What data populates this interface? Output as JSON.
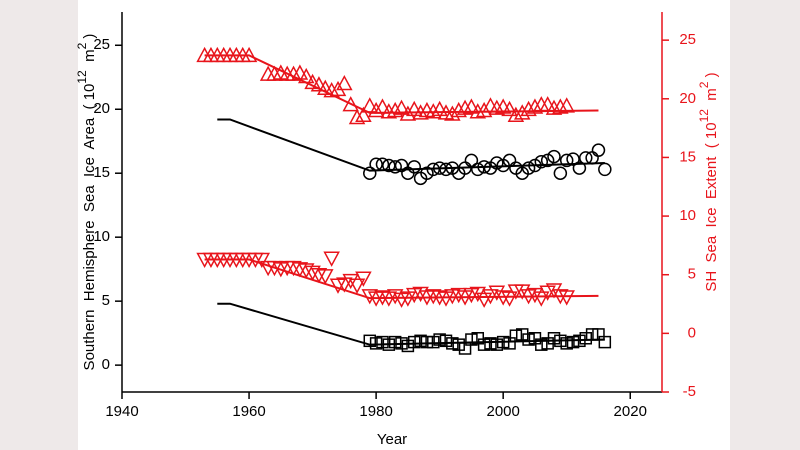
{
  "chart_data": {
    "type": "scatter",
    "xlabel": "Year",
    "ylabel": [
      "Southern  Hemisphere  Sea  Ice  Area  ( 10",
      "12",
      "  m",
      "2",
      " )"
    ],
    "y2label": [
      "SH  Sea  Ice  Extent  ( 10",
      "12",
      "  m",
      "2",
      " )"
    ],
    "xlim": [
      1940,
      2025
    ],
    "xticks": [
      1940,
      1960,
      1980,
      2000,
      2020
    ],
    "ylim": [
      -2.1,
      27.6
    ],
    "yticks": [
      0,
      5,
      10,
      15,
      20,
      25
    ],
    "y2lim": [
      -5,
      27.4
    ],
    "y2ticks": [
      -5,
      0,
      5,
      10,
      15,
      20,
      25
    ],
    "axis_color": "#000000",
    "y2_color": "#e8141b",
    "series": [
      {
        "type": "line",
        "color": "#000000",
        "x": [
          1955,
          1957,
          1979,
          2016
        ],
        "values": [
          19.2,
          19.2,
          15.2,
          15.8
        ]
      },
      {
        "type": "line",
        "color": "#000000",
        "x": [
          1955,
          1957,
          1979,
          2016
        ],
        "values": [
          4.8,
          4.8,
          1.6,
          2.0
        ]
      },
      {
        "type": "line",
        "color": "#e8141b",
        "axis": "y2",
        "x": [
          1953,
          1960,
          1979,
          2015
        ],
        "values": [
          23.7,
          23.7,
          18.8,
          19.0
        ]
      },
      {
        "type": "line",
        "color": "#e8141b",
        "axis": "y2",
        "x": [
          1953,
          1960,
          1979,
          2015
        ],
        "values": [
          6.3,
          6.3,
          3.0,
          3.2
        ]
      },
      {
        "type": "scatter",
        "marker": "circle",
        "color": "#000000",
        "x": [
          1979,
          1980,
          1981,
          1982,
          1983,
          1984,
          1985,
          1986,
          1987,
          1988,
          1989,
          1990,
          1991,
          1992,
          1993,
          1994,
          1995,
          1996,
          1997,
          1998,
          1999,
          2000,
          2001,
          2002,
          2003,
          2004,
          2005,
          2006,
          2007,
          2008,
          2009,
          2010,
          2011,
          2012,
          2013,
          2014,
          2015,
          2016
        ],
        "values": [
          15.0,
          15.7,
          15.7,
          15.6,
          15.5,
          15.6,
          15.0,
          15.5,
          14.6,
          15.0,
          15.3,
          15.4,
          15.3,
          15.4,
          15.0,
          15.4,
          16.0,
          15.3,
          15.5,
          15.4,
          15.8,
          15.6,
          16.0,
          15.4,
          15.0,
          15.4,
          15.6,
          15.9,
          16.0,
          16.3,
          15.0,
          16.0,
          16.1,
          15.4,
          16.2,
          16.2,
          16.8,
          15.3
        ]
      },
      {
        "type": "scatter",
        "marker": "square",
        "color": "#000000",
        "x": [
          1979,
          1980,
          1981,
          1982,
          1983,
          1984,
          1985,
          1986,
          1987,
          1988,
          1989,
          1990,
          1991,
          1992,
          1993,
          1994,
          1995,
          1996,
          1997,
          1998,
          1999,
          2000,
          2001,
          2002,
          2003,
          2004,
          2005,
          2006,
          2007,
          2008,
          2009,
          2010,
          2011,
          2012,
          2013,
          2014,
          2015,
          2016
        ],
        "values": [
          1.9,
          1.7,
          1.8,
          1.6,
          1.8,
          1.7,
          1.5,
          1.8,
          1.9,
          1.8,
          1.8,
          2.0,
          1.9,
          1.7,
          1.6,
          1.3,
          2.0,
          2.1,
          1.6,
          1.7,
          1.6,
          1.8,
          1.7,
          2.3,
          2.4,
          2.0,
          2.1,
          1.6,
          1.7,
          2.1,
          1.9,
          1.7,
          1.8,
          1.9,
          2.1,
          2.4,
          2.4,
          1.8
        ]
      },
      {
        "type": "scatter",
        "marker": "triangle-up",
        "color": "#e8141b",
        "axis": "y2",
        "x": [
          1953,
          1954,
          1955,
          1956,
          1957,
          1958,
          1959,
          1960,
          1963,
          1964,
          1965,
          1966,
          1967,
          1968,
          1969,
          1970,
          1971,
          1972,
          1973,
          1974,
          1975,
          1976,
          1977,
          1978,
          1979,
          1980,
          1981,
          1982,
          1983,
          1984,
          1985,
          1986,
          1987,
          1988,
          1989,
          1990,
          1991,
          1992,
          1993,
          1994,
          1995,
          1996,
          1997,
          1998,
          1999,
          2000,
          2001,
          2002,
          2003,
          2004,
          2005,
          2006,
          2007,
          2008,
          2009,
          2010
        ],
        "values": [
          23.7,
          23.7,
          23.7,
          23.7,
          23.7,
          23.7,
          23.7,
          23.7,
          22.1,
          22.1,
          22.2,
          22.1,
          22.1,
          22.2,
          21.9,
          21.4,
          21.2,
          20.9,
          20.7,
          20.8,
          21.3,
          19.5,
          18.4,
          18.6,
          19.4,
          19.0,
          19.3,
          18.9,
          19.0,
          19.2,
          18.7,
          19.1,
          18.8,
          19.0,
          18.9,
          19.1,
          18.8,
          18.7,
          19.0,
          19.2,
          19.3,
          18.9,
          19.0,
          19.4,
          19.2,
          19.3,
          19.1,
          18.6,
          18.8,
          19.1,
          19.3,
          19.5,
          19.5,
          19.2,
          19.3,
          19.4
        ]
      },
      {
        "type": "scatter",
        "marker": "triangle-down",
        "color": "#e8141b",
        "axis": "y2",
        "x": [
          1953,
          1954,
          1955,
          1956,
          1957,
          1958,
          1959,
          1960,
          1961,
          1962,
          1963,
          1964,
          1965,
          1966,
          1967,
          1968,
          1969,
          1970,
          1971,
          1972,
          1973,
          1974,
          1975,
          1976,
          1977,
          1978,
          1979,
          1980,
          1981,
          1982,
          1983,
          1984,
          1985,
          1986,
          1987,
          1988,
          1989,
          1990,
          1991,
          1992,
          1993,
          1994,
          1995,
          1996,
          1997,
          1998,
          1999,
          2000,
          2001,
          2002,
          2003,
          2004,
          2005,
          2006,
          2007,
          2008,
          2009,
          2010
        ],
        "values": [
          6.3,
          6.3,
          6.3,
          6.3,
          6.3,
          6.3,
          6.3,
          6.3,
          6.3,
          6.3,
          5.6,
          5.6,
          5.5,
          5.6,
          5.6,
          5.5,
          5.4,
          5.2,
          5.0,
          4.9,
          6.4,
          4.1,
          4.2,
          4.5,
          4.1,
          4.7,
          3.2,
          3.0,
          3.1,
          3.0,
          3.2,
          2.9,
          3.0,
          3.3,
          3.4,
          3.1,
          3.2,
          3.1,
          3.0,
          3.2,
          3.3,
          3.1,
          3.3,
          3.4,
          2.9,
          3.2,
          3.5,
          3.1,
          3.0,
          3.6,
          3.6,
          3.2,
          3.3,
          3.0,
          3.5,
          3.7,
          3.2,
          3.1
        ]
      }
    ]
  }
}
